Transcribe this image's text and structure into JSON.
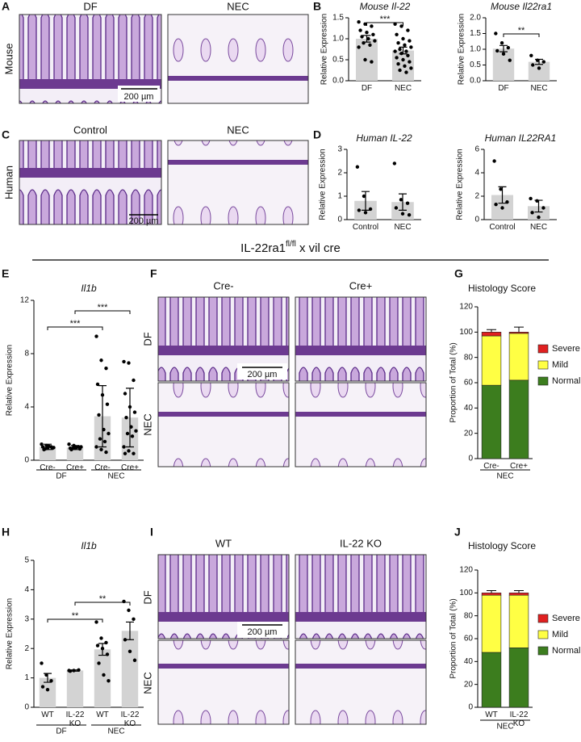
{
  "panel_letters": [
    "A",
    "B",
    "C",
    "D",
    "E",
    "F",
    "G",
    "H",
    "I",
    "J"
  ],
  "images": [
    {
      "columns": [
        "DF",
        "NEC"
      ],
      "rows": [
        "Mouse"
      ],
      "scale_bar": "200 µm"
    },
    {
      "columns": [
        "Control",
        "NEC"
      ],
      "rows": [
        "Human"
      ],
      "scale_bar": "200 µm"
    },
    {
      "columns": [
        "Cre-",
        "Cre+"
      ],
      "rows": [
        "DF",
        "NEC"
      ],
      "scale_bar": "200 µm"
    },
    {
      "columns": [
        "WT",
        "IL-22 KO"
      ],
      "rows": [
        "DF",
        "NEC"
      ],
      "scale_bar": "200 µm"
    }
  ],
  "construct_title": [
    "IL-22ra1",
    "fl/fl",
    " x vil cre"
  ],
  "chart_data": [
    {
      "type": "bar",
      "title": "Mouse Il-22",
      "ylabel": "Relative Expression",
      "categories": [
        "DF",
        "NEC"
      ],
      "values": [
        1.0,
        0.72
      ],
      "errors": [
        0.08,
        0.08
      ],
      "points": [
        [
          1.4,
          1.35,
          1.3,
          1.2,
          1.15,
          1.1,
          1.05,
          1.0,
          0.95,
          0.9,
          0.85,
          0.8,
          0.5,
          0.45
        ],
        [
          1.35,
          1.3,
          1.2,
          1.1,
          1.0,
          0.95,
          0.9,
          0.85,
          0.8,
          0.75,
          0.7,
          0.7,
          0.65,
          0.6,
          0.55,
          0.5,
          0.45,
          0.4,
          0.35,
          0.3,
          0.25,
          0.2
        ]
      ],
      "color": "#d3d3d3",
      "annotations": [
        "***"
      ],
      "ylim": [
        0,
        1.5
      ],
      "yticks": [
        {
          "value": 0,
          "label": "0.0"
        },
        {
          "value": 0.5,
          "label": "0.5"
        },
        {
          "value": 1,
          "label": "1.0"
        },
        {
          "value": 1.5,
          "label": "1.5"
        }
      ]
    },
    {
      "type": "bar",
      "title": "Mouse Il22ra1",
      "ylabel": "Relative Expression",
      "categories": [
        "DF",
        "NEC"
      ],
      "values": [
        1.02,
        0.6
      ],
      "errors": [
        0.1,
        0.08
      ],
      "points": [
        [
          1.5,
          1.2,
          1.05,
          0.95,
          0.85,
          0.65
        ],
        [
          0.8,
          0.65,
          0.6,
          0.5,
          0.4
        ]
      ],
      "color": "#d3d3d3",
      "annotations": [
        "**"
      ],
      "ylim": [
        0,
        2
      ],
      "yticks": [
        {
          "value": 0,
          "label": "0.0"
        },
        {
          "value": 0.5,
          "label": "0.5"
        },
        {
          "value": 1,
          "label": "1.0"
        },
        {
          "value": 1.5,
          "label": "1.5"
        },
        {
          "value": 2,
          "label": "2.0"
        }
      ]
    },
    {
      "type": "bar",
      "title": "Human IL-22",
      "ylabel": "Relative Expression",
      "categories": [
        "Control",
        "NEC"
      ],
      "values": [
        0.8,
        0.75
      ],
      "errors": [
        0.4,
        0.35
      ],
      "points": [
        [
          2.25,
          1.0,
          0.45,
          0.4,
          0.3
        ],
        [
          2.4,
          0.85,
          0.7,
          0.5,
          0.25,
          0.2
        ]
      ],
      "color": "#d3d3d3",
      "ylim": [
        0,
        3
      ],
      "yticks": [
        0,
        1,
        2,
        3
      ]
    },
    {
      "type": "bar",
      "title": "Human IL22RA1",
      "ylabel": "Relative Expression",
      "categories": [
        "Control",
        "NEC"
      ],
      "values": [
        2.1,
        1.15
      ],
      "errors": [
        0.7,
        0.5
      ],
      "points": [
        [
          5.0,
          2.6,
          1.5,
          1.3,
          1.0
        ],
        [
          1.8,
          1.6,
          1.0,
          0.6,
          0.2
        ]
      ],
      "color": "#d3d3d3",
      "ylim": [
        0,
        6
      ],
      "yticks": [
        0,
        2,
        4,
        6
      ]
    },
    {
      "type": "bar",
      "title": "Il1b",
      "ylabel": "Relative Expression",
      "categories": [
        "Cre-",
        "Cre+",
        "Cre-",
        "Cre+"
      ],
      "group_labels": [
        "DF",
        "NEC"
      ],
      "values": [
        1.0,
        0.95,
        3.3,
        3.2
      ],
      "errors": [
        0.2,
        0.15,
        2.3,
        2.2
      ],
      "points": [
        [
          1.2,
          1.1,
          1.0,
          1.0,
          0.9,
          0.9,
          0.8,
          1.05,
          0.95,
          0.85
        ],
        [
          1.2,
          1.1,
          1.0,
          0.9,
          0.9,
          0.85,
          0.8,
          0.95,
          1.0,
          0.9
        ],
        [
          9.3,
          7.5,
          6.9,
          5.7,
          4.9,
          4.2,
          3.4,
          2.3,
          2.0,
          1.6,
          1.4,
          1.0,
          0.8,
          0.6
        ],
        [
          7.4,
          7.3,
          6.0,
          5.0,
          4.0,
          3.6,
          3.2,
          2.5,
          2.2,
          2.0,
          1.8,
          1.0,
          0.7,
          0.5,
          0.5
        ]
      ],
      "color": "#d3d3d3",
      "annotations": [
        "***",
        "***"
      ],
      "ylim": [
        0,
        12
      ],
      "yticks": [
        0,
        4,
        8,
        12
      ]
    },
    {
      "type": "stacked_bar",
      "title": "Histology Score",
      "ylabel": "Proportion of Total (%)",
      "categories": [
        "Cre-",
        "Cre+"
      ],
      "group_labels": [
        "NEC"
      ],
      "series": [
        {
          "name": "Normal",
          "color": "#3c7d1e",
          "values": [
            58,
            62
          ],
          "errors": [
            6,
            5
          ]
        },
        {
          "name": "Mild",
          "color": "#ffff44",
          "values": [
            39,
            37
          ]
        },
        {
          "name": "Severe",
          "color": "#e02020",
          "values": [
            3,
            1
          ],
          "errors": [
            2,
            4
          ]
        }
      ],
      "ylim": [
        0,
        120
      ],
      "yticks": [
        0,
        20,
        40,
        60,
        80,
        100,
        120
      ]
    },
    {
      "type": "bar",
      "title": "Il1b",
      "ylabel": "Relative Expression",
      "categories": [
        "WT",
        "IL-22 KO",
        "WT",
        "IL-22 KO"
      ],
      "group_labels": [
        "DF",
        "NEC"
      ],
      "values": [
        1.0,
        1.25,
        1.97,
        2.6
      ],
      "errors": [
        0.15,
        0.02,
        0.2,
        0.3
      ],
      "points": [
        [
          1.5,
          1.1,
          0.9,
          0.7,
          0.6
        ],
        [
          1.25,
          1.25,
          1.27,
          1.23
        ],
        [
          2.9,
          2.35,
          2.2,
          2.1,
          2.0,
          1.8,
          1.5,
          1.1,
          0.9
        ],
        [
          3.6,
          3.3,
          3.0,
          2.3,
          1.9,
          1.6
        ]
      ],
      "color": "#d3d3d3",
      "annotations": [
        "**",
        "**"
      ],
      "ylim": [
        0,
        5
      ],
      "yticks": [
        0,
        1,
        2,
        3,
        4,
        5
      ]
    },
    {
      "type": "stacked_bar",
      "title": "Histology Score",
      "ylabel": "Proportion of Total (%)",
      "categories": [
        "WT",
        "IL-22 KO"
      ],
      "group_labels": [
        "NEC"
      ],
      "series": [
        {
          "name": "Normal",
          "color": "#3c7d1e",
          "values": [
            48,
            52
          ],
          "errors": [
            4,
            4
          ]
        },
        {
          "name": "Mild",
          "color": "#ffff44",
          "values": [
            50,
            46
          ]
        },
        {
          "name": "Severe",
          "color": "#e02020",
          "values": [
            2,
            2
          ],
          "errors": [
            2,
            2
          ]
        }
      ],
      "ylim": [
        0,
        120
      ],
      "yticks": [
        0,
        20,
        40,
        60,
        80,
        100,
        120
      ]
    }
  ]
}
